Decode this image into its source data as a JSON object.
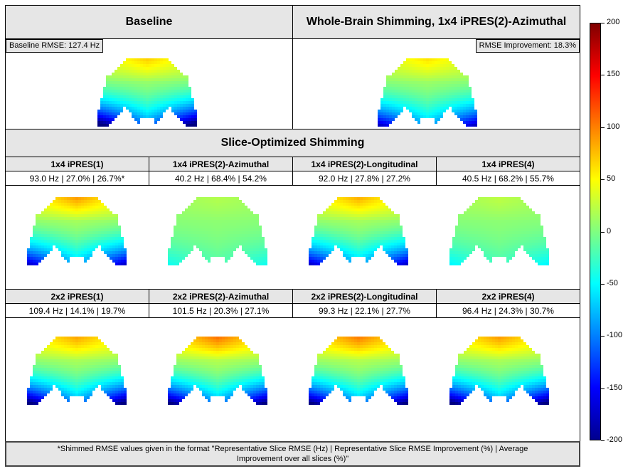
{
  "top": {
    "left_title": "Baseline",
    "right_title": "Whole-Brain Shimming, 1x4 iPRES(2)-Azimuthal",
    "left_tag": "Baseline RMSE: 127.4 Hz",
    "right_tag": "RMSE Improvement: 18.3%"
  },
  "slice": {
    "title": "Slice-Optimized Shimming",
    "row1": [
      {
        "name": "1x4 iPRES(1)",
        "value": "93.0 Hz | 27.0% | 26.7%*"
      },
      {
        "name": "1x4 iPRES(2)-Azimuthal",
        "value": "40.2 Hz | 68.4% | 54.2%"
      },
      {
        "name": "1x4 iPRES(2)-Longitudinal",
        "value": "92.0 Hz | 27.8% | 27.2%"
      },
      {
        "name": "1x4 iPRES(4)",
        "value": "40.5 Hz | 68.2% | 55.7%"
      }
    ],
    "row2": [
      {
        "name": "2x2 iPRES(1)",
        "value": "109.4 Hz | 14.1% | 19.7%"
      },
      {
        "name": "2x2 iPRES(2)-Azimuthal",
        "value": "101.5 Hz | 20.3% | 27.1%"
      },
      {
        "name": "2x2 iPRES(2)-Longitudinal",
        "value": "99.3 Hz | 22.1% | 27.7%"
      },
      {
        "name": "2x2 iPRES(4)",
        "value": "96.4 Hz | 24.3% | 30.7%"
      }
    ]
  },
  "footnote": "*Shimmed RMSE values given in the format \"Representative Slice RMSE (Hz) | Representative Slice RMSE Improvement (%) | Average Improvement over all slices (%)\"",
  "chart_data": {
    "type": "heatmap",
    "colormap": "jet",
    "colorbar": {
      "range": [
        -200,
        200
      ],
      "ticks": [
        200,
        150,
        100,
        50,
        0,
        -50,
        -100,
        -150,
        -200
      ],
      "tick_labels": [
        "200",
        "150",
        "100",
        "50",
        "0",
        "-50",
        "-100",
        "-150",
        "-200"
      ]
    }
  }
}
